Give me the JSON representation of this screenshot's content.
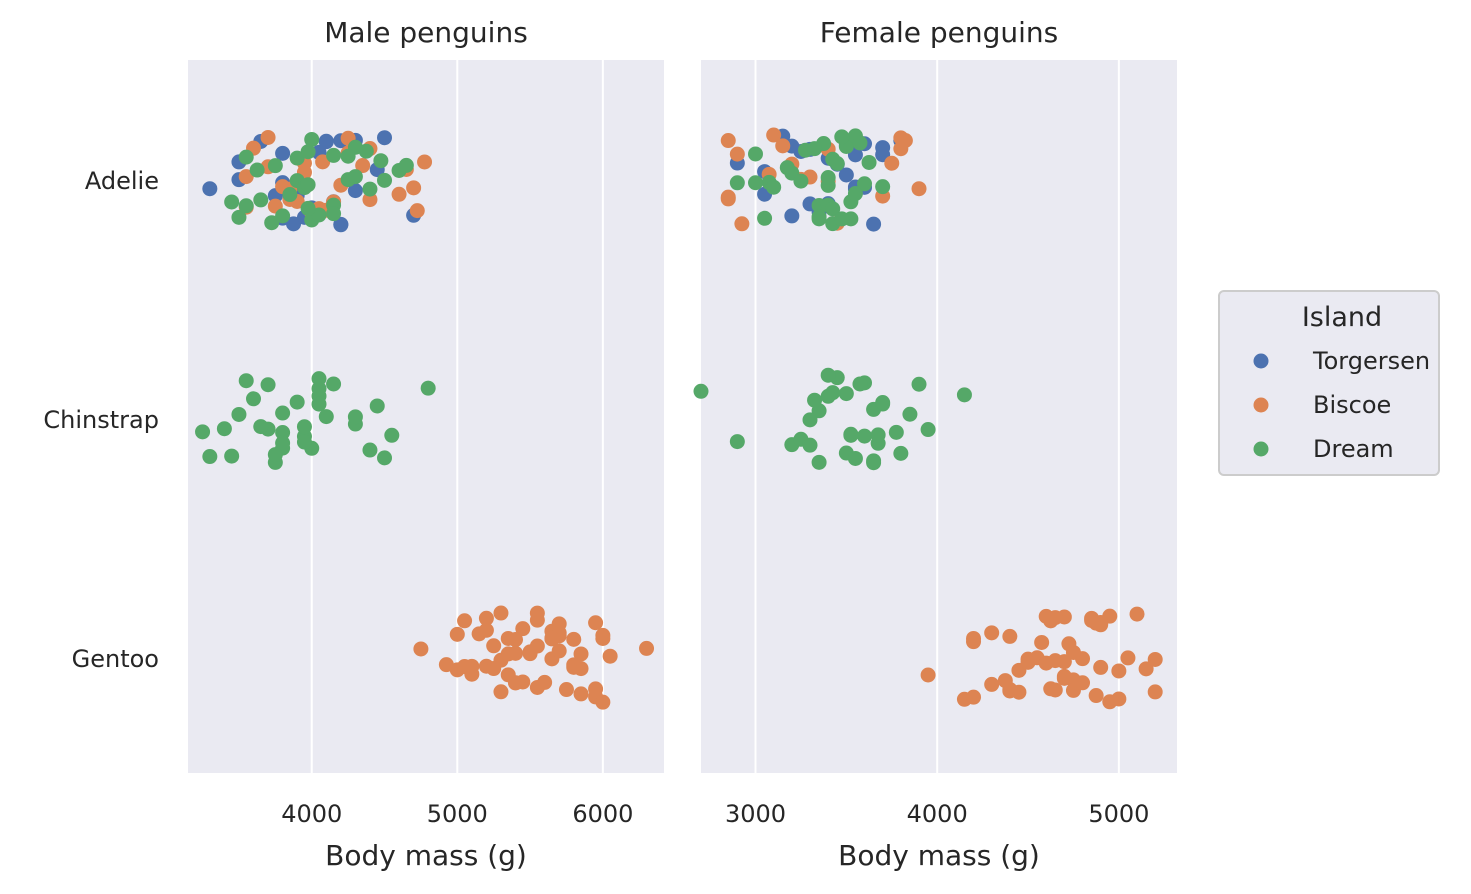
{
  "chart_data": {
    "type": "scatter",
    "subtype": "strip",
    "categories": [
      "Adelie",
      "Chinstrap",
      "Gentoo"
    ],
    "legend": {
      "title": "Island",
      "placement": "right",
      "entries": [
        {
          "name": "Torgersen",
          "color": "#4c72b0"
        },
        {
          "name": "Biscoe",
          "color": "#dd8452"
        },
        {
          "name": "Dream",
          "color": "#55a868"
        }
      ]
    },
    "panels": [
      {
        "title": "Male penguins",
        "xlabel": "Body mass (g)",
        "xlim": [
          3150,
          6420
        ],
        "xticks": [
          4000,
          5000,
          6000
        ],
        "grid": true,
        "series": {
          "Torgersen": {
            "Adelie": [
              3300,
              3500,
              3900,
              3875,
              3900,
              3800,
              4000,
              3950,
              4100,
              4200,
              4250,
              4050,
              4200,
              4300,
              4450,
              4500,
              3650,
              3750,
              3800,
              4000,
              4150,
              4200,
              4300,
              3500,
              3800,
              4700,
              4100
            ]
          },
          "Biscoe": {
            "Adelie": [
              3550,
              3600,
              3700,
              3850,
              3900,
              4000,
              4050,
              4100,
              4150,
              4250,
              4350,
              4400,
              4600,
              4650,
              4775,
              3750,
              3950,
              4050,
              4200,
              4250,
              3550,
              3800,
              3950,
              4075,
              4725,
              3850,
              3700,
              4400,
              4700
            ],
            "Gentoo": [
              4750,
              4925,
              5000,
              5050,
              5200,
              5300,
              5350,
              5400,
              5500,
              5550,
              5600,
              5650,
              5700,
              5750,
              5800,
              5850,
              5950,
              6000,
              6050,
              6300,
              5000,
              5100,
              5150,
              5200,
              5250,
              5300,
              5350,
              5400,
              5450,
              5500,
              5550,
              5650,
              5700,
              5800,
              5950,
              6000,
              5050,
              5200,
              5300,
              5350,
              5400,
              5450,
              5550,
              5650,
              5700,
              5850,
              5400,
              5250,
              5550,
              5700,
              5950,
              6000,
              5650,
              5800,
              5100,
              5850
            ]
          },
          "Dream": {
            "Adelie": [
              3650,
              3725,
              3900,
              4150,
              4250,
              4600,
              3550,
              3900,
              4000,
              4150,
              4500,
              3500,
              3625,
              3950,
              4050,
              4300,
              4650,
              3450,
              3800,
              4150,
              4375,
              3550,
              3750,
              4000,
              4300,
              3850,
              3975,
              4250,
              3975,
              4475,
              3975,
              4400
            ],
            "Chinstrap": [
              3250,
              3300,
              3450,
              4050,
              4550,
              3700,
              3800,
              4050,
              3900,
              3950,
              4150,
              4400,
              4450,
              3600,
              3700,
              4100,
              4300,
              4500,
              3500,
              3750,
              3550,
              3650,
              3800,
              4050,
              3400,
              3800,
              3950,
              4050,
              3750,
              4300,
              3800,
              4000,
              3950,
              4800
            ]
          }
        }
      },
      {
        "title": "Female penguins",
        "xlabel": "Body mass (g)",
        "xlim": [
          2700,
          5320
        ],
        "xticks": [
          3000,
          4000,
          5000
        ],
        "grid": true,
        "series": {
          "Torgersen": {
            "Adelie": [
              3200,
              3450,
              3600,
              3700,
              3800,
              3400,
              3300,
              3550,
              3150,
              3050,
              3350,
              3500,
              3250,
              3550,
              3300,
              3550,
              3600,
              2900,
              3050,
              3200,
              3350,
              3500,
              3650,
              3700,
              3400,
              3550
            ]
          },
          "Biscoe": {
            "Adelie": [
              2850,
              3075,
              3700,
              3800,
              3825,
              3100,
              3150,
              3250,
              2850,
              2925,
              3750,
              3800,
              2900,
              3200,
              3300,
              3400,
              3450,
              2850,
              3900,
              3400
            ],
            "Gentoo": [
              4200,
              4300,
              4375,
              4550,
              4625,
              4700,
              4750,
              4850,
              4875,
              4200,
              4300,
              4400,
              4450,
              4600,
              4650,
              4700,
              4750,
              4800,
              4900,
              5000,
              4500,
              4650,
              4800,
              4950,
              5150,
              3950,
              4450,
              4575,
              4875,
              5050,
              5200,
              4150,
              4200,
              4400,
              4500,
              4600,
              4700,
              4850,
              4900,
              4950,
              5000,
              5100,
              4400,
              4625,
              4700,
              4750,
              4900,
              5200,
              4650,
              4725
            ]
          },
          "Dream": {
            "Adelie": [
              3000,
              3200,
              3350,
              3400,
              3050,
              3175,
              3425,
              3600,
              3250,
              3500,
              3700,
              3075,
              3375,
              3425,
              3550,
              3275,
              3450,
              3625,
              2900,
              3425,
              3000,
              3100,
              3350,
              3525,
              3475,
              3400,
              3525,
              3575,
              3325,
              3400,
              3350,
              3550,
              3475
            ],
            "Chinstrap": [
              2700,
              2900,
              3200,
              3250,
              3300,
              3350,
              3450,
              3500,
              3525,
              3600,
              3850,
              3950,
              4150,
              3325,
              3400,
              3500,
              3550,
              3600,
              3650,
              3700,
              3675,
              3800,
              3900,
              3425,
              3575,
              3675,
              3700,
              3300,
              3350,
              3400,
              3525,
              3650,
              3650,
              3775
            ]
          }
        }
      }
    ]
  }
}
